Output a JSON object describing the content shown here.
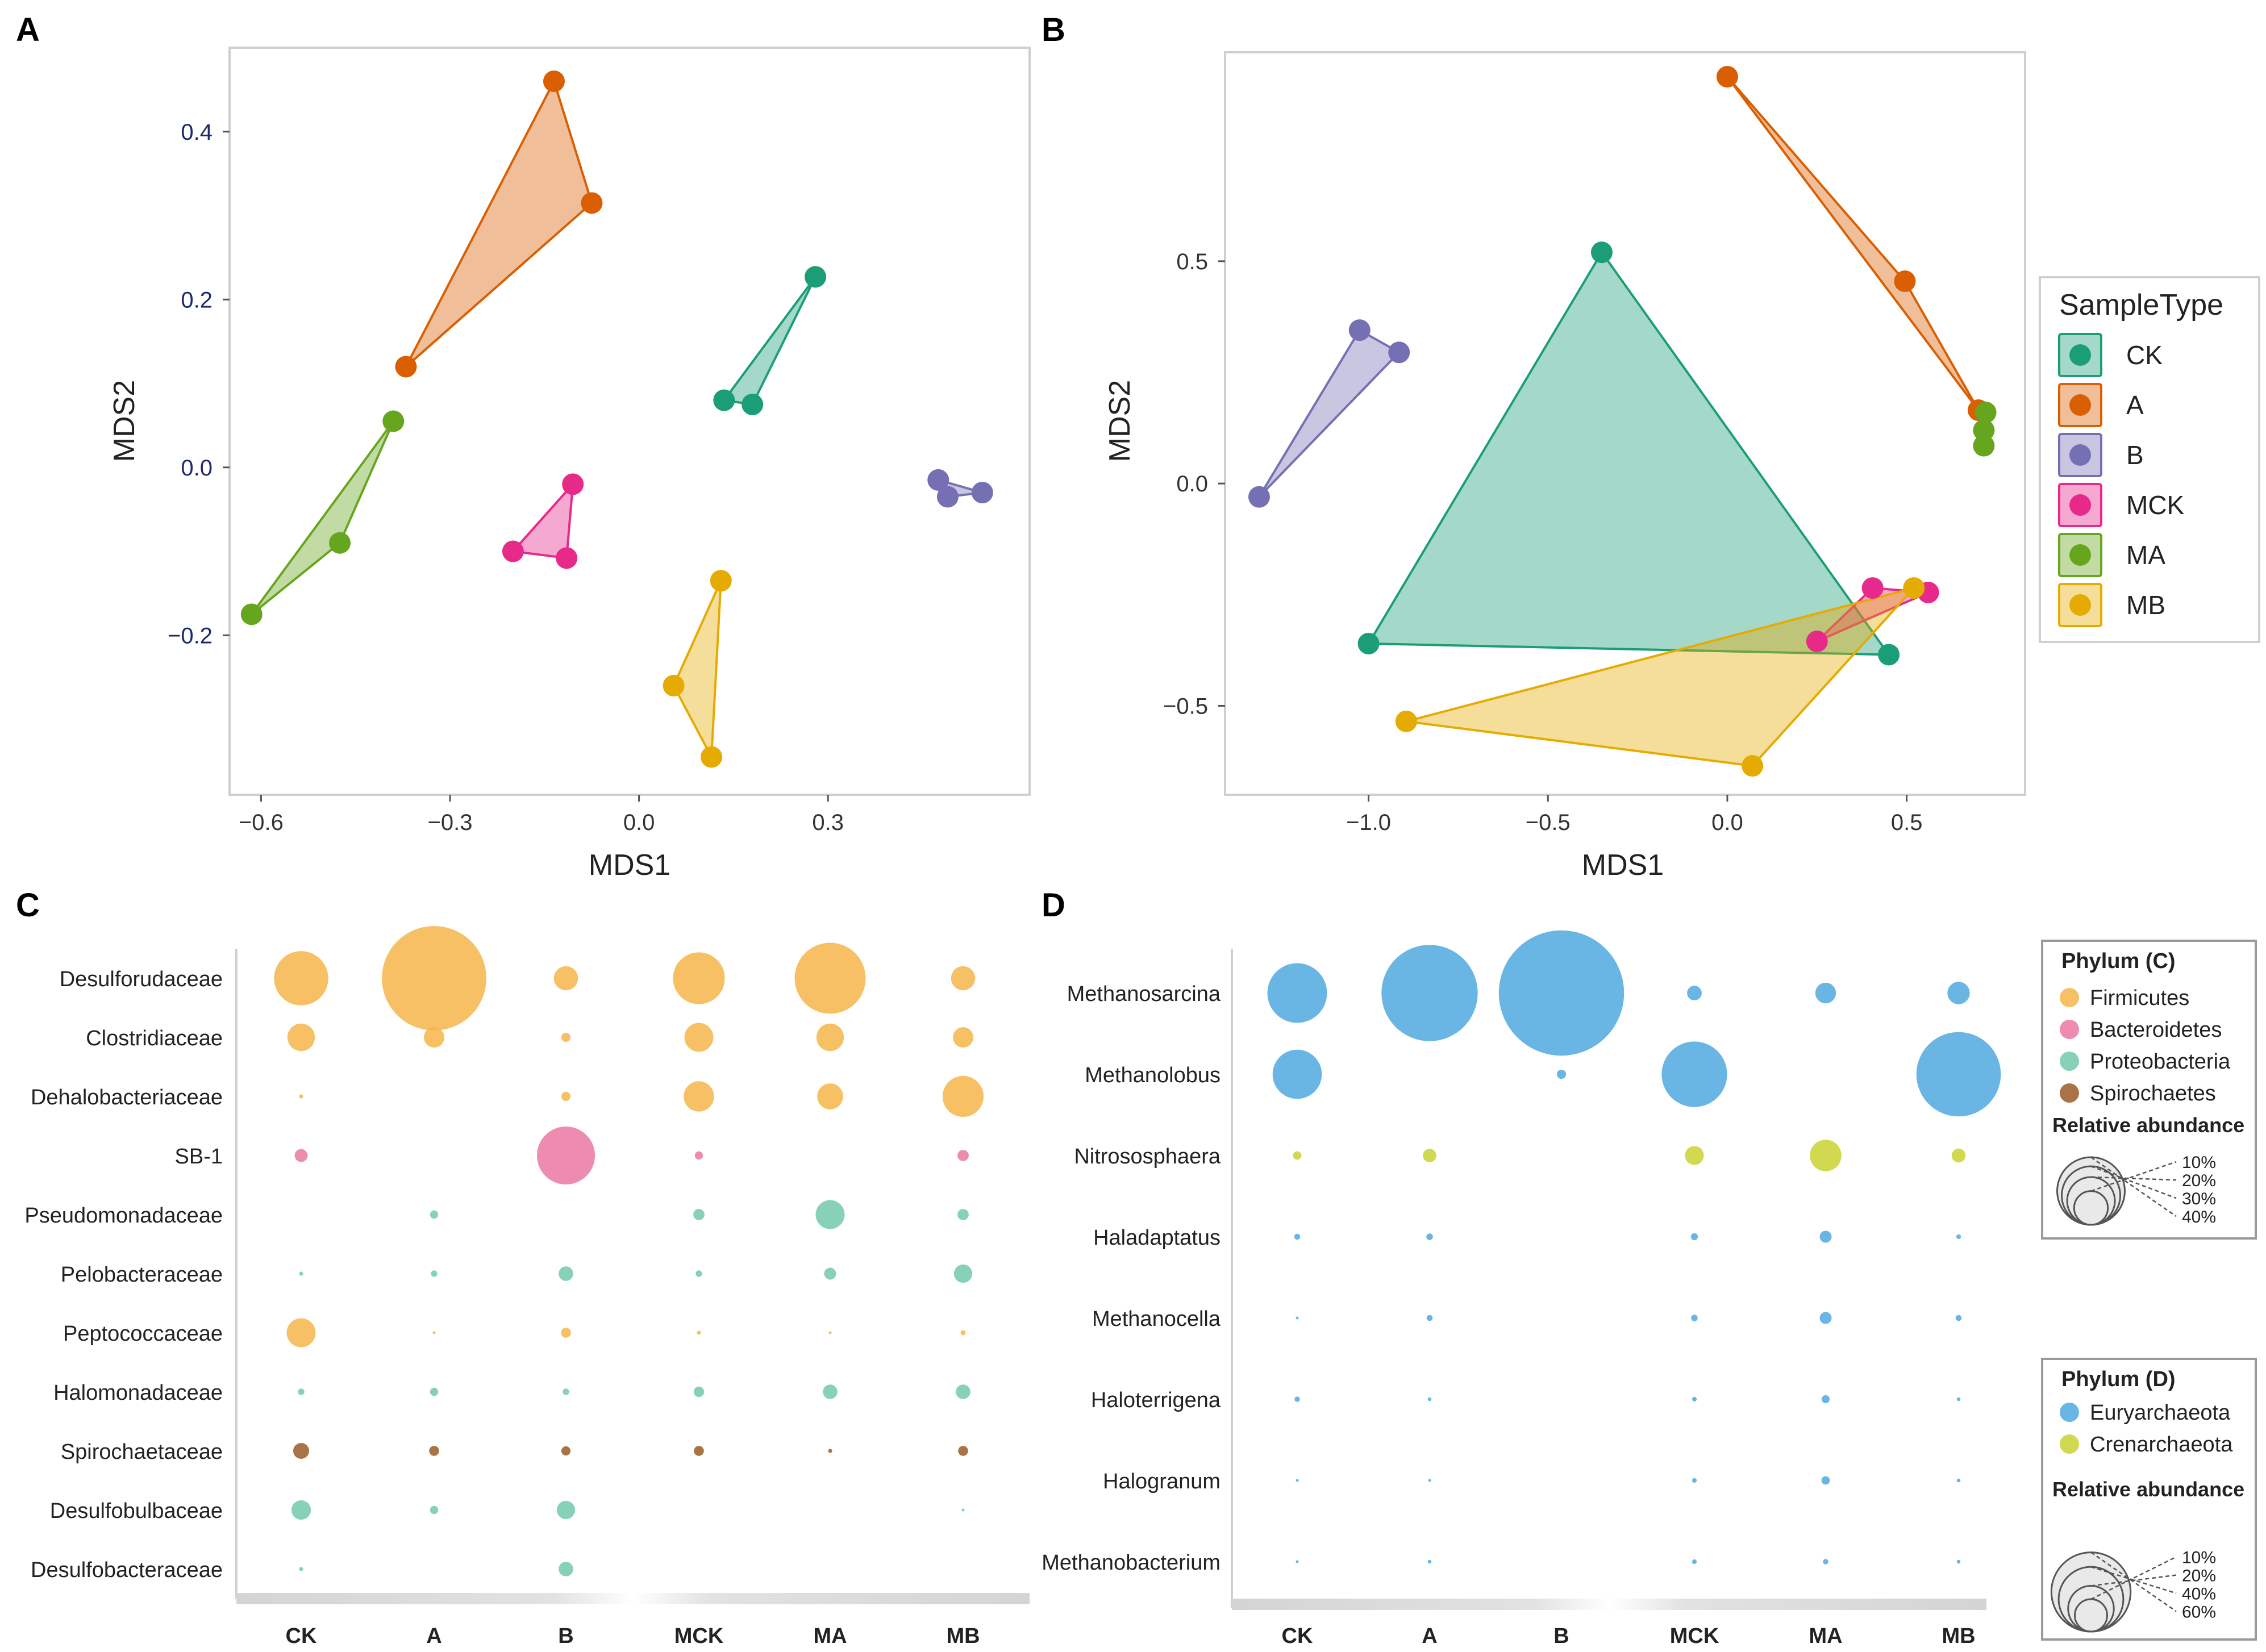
{
  "figure": {
    "panel_labels": [
      "A",
      "B",
      "C",
      "D"
    ]
  },
  "colors": {
    "CK": "#1b9e77",
    "A": "#d95f02",
    "B": "#7570b3",
    "MCK": "#e7298a",
    "MA": "#66a61e",
    "MB": "#e6ab02",
    "Firmicutes": "#f7b54a",
    "Bacteroidetes": "#ea78a2",
    "Proteobacteria": "#73c9ad",
    "Spirochaetes": "#9b5a26",
    "Euryarchaeota": "#4fa9e0",
    "Crenarchaeota": "#c9d232"
  },
  "chart_data": [
    {
      "id": "A",
      "type": "scatter",
      "xlabel": "MDS1",
      "ylabel": "MDS2",
      "xlim": [
        -0.65,
        0.62
      ],
      "ylim": [
        -0.39,
        0.5
      ],
      "xticks": [
        -0.6,
        -0.3,
        0.0,
        0.3
      ],
      "xtick_labels": [
        "−0.6",
        "−0.3",
        "0.0",
        "0.3"
      ],
      "yticks": [
        -0.2,
        0.0,
        0.2,
        0.4
      ],
      "ytick_labels": [
        "−0.2",
        "0.0",
        "0.2",
        "0.4"
      ],
      "series": [
        {
          "name": "CK",
          "points": [
            [
              0.28,
              0.227
            ],
            [
              0.135,
              0.08
            ],
            [
              0.18,
              0.075
            ]
          ]
        },
        {
          "name": "A",
          "points": [
            [
              -0.135,
              0.46
            ],
            [
              -0.075,
              0.315
            ],
            [
              -0.37,
              0.12
            ]
          ]
        },
        {
          "name": "B",
          "points": [
            [
              0.475,
              -0.015
            ],
            [
              0.49,
              -0.035
            ],
            [
              0.545,
              -0.03
            ]
          ]
        },
        {
          "name": "MCK",
          "points": [
            [
              -0.105,
              -0.02
            ],
            [
              -0.2,
              -0.1
            ],
            [
              -0.115,
              -0.108
            ]
          ]
        },
        {
          "name": "MA",
          "points": [
            [
              -0.39,
              0.055
            ],
            [
              -0.475,
              -0.09
            ],
            [
              -0.615,
              -0.175
            ]
          ]
        },
        {
          "name": "MB",
          "points": [
            [
              0.13,
              -0.135
            ],
            [
              0.055,
              -0.26
            ],
            [
              0.115,
              -0.345
            ]
          ]
        }
      ]
    },
    {
      "id": "B",
      "type": "scatter",
      "xlabel": "MDS1",
      "ylabel": "MDS2",
      "xlim": [
        -1.4,
        0.83
      ],
      "ylim": [
        -0.7,
        0.97
      ],
      "xticks": [
        -1.0,
        -0.5,
        0.0,
        0.5
      ],
      "xtick_labels": [
        "−1.0",
        "−0.5",
        "0.0",
        "0.5"
      ],
      "yticks": [
        -0.5,
        0.0,
        0.5
      ],
      "ytick_labels": [
        "−0.5",
        "0.0",
        "0.5"
      ],
      "legend_title": "SampleType",
      "legend_position": "right",
      "series": [
        {
          "name": "CK",
          "points": [
            [
              -0.35,
              0.52
            ],
            [
              -1.0,
              -0.36
            ],
            [
              0.45,
              -0.385
            ]
          ]
        },
        {
          "name": "A",
          "points": [
            [
              0.0,
              0.915
            ],
            [
              0.495,
              0.455
            ],
            [
              0.7,
              0.165
            ]
          ]
        },
        {
          "name": "B",
          "points": [
            [
              -1.025,
              0.345
            ],
            [
              -0.915,
              0.295
            ],
            [
              -1.305,
              -0.03
            ]
          ]
        },
        {
          "name": "MCK",
          "points": [
            [
              0.405,
              -0.235
            ],
            [
              0.56,
              -0.245
            ],
            [
              0.25,
              -0.355
            ]
          ]
        },
        {
          "name": "MA",
          "points": [
            [
              0.72,
              0.16
            ],
            [
              0.715,
              0.12
            ],
            [
              0.715,
              0.085
            ]
          ]
        },
        {
          "name": "MB",
          "points": [
            [
              0.52,
              -0.235
            ],
            [
              -0.895,
              -0.535
            ],
            [
              0.07,
              -0.635
            ]
          ]
        }
      ]
    },
    {
      "id": "C",
      "type": "bubble",
      "columns": [
        "CK",
        "A",
        "B",
        "MCK",
        "MA",
        "MB"
      ],
      "rows": [
        {
          "name": "Desulforudaceae",
          "phylum": "Firmicutes",
          "values": [
            3.5,
            13.0,
            0.7,
            3.2,
            6.0,
            0.7
          ]
        },
        {
          "name": "Clostridiaceae",
          "phylum": "Firmicutes",
          "values": [
            0.9,
            0.5,
            0.1,
            1.0,
            0.9,
            0.5
          ]
        },
        {
          "name": "Dehalobacteriaceae",
          "phylum": "Firmicutes",
          "values": [
            0.02,
            0.0,
            0.1,
            1.1,
            0.8,
            2.0
          ]
        },
        {
          "name": "SB-1",
          "phylum": "Bacteroidetes",
          "values": [
            0.2,
            0.0,
            4.0,
            0.08,
            0.0,
            0.15
          ]
        },
        {
          "name": "Pseudomonadaceae",
          "phylum": "Proteobacteria",
          "values": [
            0.0,
            0.08,
            0.0,
            0.15,
            1.0,
            0.15
          ]
        },
        {
          "name": "Pelobacteraceae",
          "phylum": "Proteobacteria",
          "values": [
            0.02,
            0.05,
            0.25,
            0.05,
            0.17,
            0.4
          ]
        },
        {
          "name": "Peptococcaceae",
          "phylum": "Firmicutes",
          "values": [
            1.0,
            0.01,
            0.12,
            0.02,
            0.01,
            0.03
          ]
        },
        {
          "name": "Halomonadaceae",
          "phylum": "Proteobacteria",
          "values": [
            0.05,
            0.08,
            0.05,
            0.13,
            0.25,
            0.25
          ]
        },
        {
          "name": "Spirochaetaceae",
          "phylum": "Spirochaetes",
          "values": [
            0.3,
            0.12,
            0.1,
            0.12,
            0.02,
            0.12
          ]
        },
        {
          "name": "Desulfobulbaceae",
          "phylum": "Proteobacteria",
          "values": [
            0.45,
            0.08,
            0.4,
            0.0,
            0.0,
            0.01
          ]
        },
        {
          "name": "Desulfobacteraceae",
          "phylum": "Proteobacteria",
          "values": [
            0.02,
            0.0,
            0.25,
            0.0,
            0.0,
            0.0
          ]
        }
      ],
      "legend_title": "Phylum (C)",
      "legend_phyla": [
        "Firmicutes",
        "Bacteroidetes",
        "Proteobacteria",
        "Spirochaetes"
      ],
      "size_legend_title": "Relative abundance",
      "size_legend": [
        {
          "value": 10,
          "label": "10%"
        },
        {
          "value": 20,
          "label": "20%"
        },
        {
          "value": 30,
          "label": "30%"
        },
        {
          "value": 40,
          "label": "40%"
        }
      ]
    },
    {
      "id": "D",
      "type": "bubble",
      "columns": [
        "CK",
        "A",
        "B",
        "MCK",
        "MA",
        "MB"
      ],
      "rows": [
        {
          "name": "Methanosarcina",
          "phylum": "Euryarchaeota",
          "values": [
            5.0,
            13.0,
            22.0,
            0.3,
            0.6,
            0.7
          ]
        },
        {
          "name": "Methanolobus",
          "phylum": "Euryarchaeota",
          "values": [
            3.4,
            0.0,
            0.12,
            6.0,
            0.0,
            10.0
          ]
        },
        {
          "name": "Nitrososphaera",
          "phylum": "Crenarchaeota",
          "values": [
            0.1,
            0.25,
            0.0,
            0.5,
            1.4,
            0.27
          ]
        },
        {
          "name": "Haladaptatus",
          "phylum": "Euryarchaeota",
          "values": [
            0.05,
            0.06,
            0.0,
            0.07,
            0.2,
            0.03
          ]
        },
        {
          "name": "Methanocella",
          "phylum": "Euryarchaeota",
          "values": [
            0.01,
            0.05,
            0.0,
            0.06,
            0.2,
            0.05
          ]
        },
        {
          "name": "Haloterrigena",
          "phylum": "Euryarchaeota",
          "values": [
            0.04,
            0.02,
            0.0,
            0.03,
            0.09,
            0.02
          ]
        },
        {
          "name": "Halogranum",
          "phylum": "Euryarchaeota",
          "values": [
            0.01,
            0.01,
            0.0,
            0.03,
            0.1,
            0.02
          ]
        },
        {
          "name": "Methanobacterium",
          "phylum": "Euryarchaeota",
          "values": [
            0.01,
            0.02,
            0.0,
            0.03,
            0.04,
            0.02
          ]
        }
      ],
      "legend_title": "Phylum (D)",
      "legend_phyla": [
        "Euryarchaeota",
        "Crenarchaeota"
      ],
      "size_legend_title": "Relative abundance",
      "size_legend": [
        {
          "value": 10,
          "label": "10%"
        },
        {
          "value": 20,
          "label": "20%"
        },
        {
          "value": 40,
          "label": "40%"
        },
        {
          "value": 60,
          "label": "60%"
        }
      ]
    }
  ]
}
